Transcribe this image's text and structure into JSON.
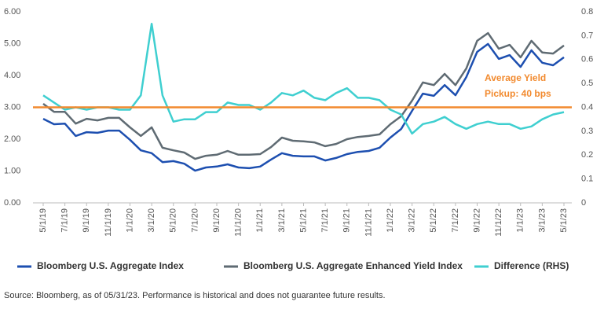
{
  "chart_data": {
    "type": "line",
    "categories": [
      "5/1/19",
      null,
      "7/1/19",
      null,
      "9/1/19",
      null,
      "11/1/19",
      null,
      "1/1/20",
      null,
      "3/1/20",
      null,
      "5/1/20",
      null,
      "7/1/20",
      null,
      "9/1/20",
      null,
      "11/1/20",
      null,
      "1/1/21",
      null,
      "3/1/21",
      null,
      "5/1/21",
      null,
      "7/1/21",
      null,
      "9/1/21",
      null,
      "11/1/21",
      null,
      "1/1/22",
      null,
      "3/1/22",
      null,
      "5/1/22",
      null,
      "7/1/22",
      null,
      "9/1/22",
      null,
      "11/1/22",
      null,
      "1/1/23",
      null,
      "3/1/23",
      null,
      "5/1/23"
    ],
    "series": [
      {
        "name": "Bloomberg U.S. Aggregate Index",
        "color": "#1d4fb0",
        "values": [
          2.64,
          2.47,
          2.49,
          2.1,
          2.22,
          2.2,
          2.27,
          2.27,
          1.98,
          1.65,
          1.56,
          1.28,
          1.31,
          1.23,
          1.01,
          1.11,
          1.14,
          1.21,
          1.11,
          1.09,
          1.14,
          1.36,
          1.56,
          1.48,
          1.46,
          1.46,
          1.33,
          1.41,
          1.53,
          1.6,
          1.63,
          1.73,
          2.05,
          2.32,
          2.89,
          3.43,
          3.36,
          3.7,
          3.38,
          3.95,
          4.74,
          4.99,
          4.52,
          4.64,
          4.27,
          4.79,
          4.4,
          4.32,
          4.57
        ]
      },
      {
        "name": "Bloomberg U.S. Aggregate Enhanced Yield Index",
        "color": "#5f6b73",
        "values": [
          3.11,
          2.86,
          2.86,
          2.49,
          2.64,
          2.59,
          2.67,
          2.67,
          2.37,
          2.1,
          2.37,
          1.73,
          1.65,
          1.58,
          1.38,
          1.48,
          1.51,
          1.63,
          1.51,
          1.51,
          1.53,
          1.75,
          2.05,
          1.95,
          1.93,
          1.9,
          1.78,
          1.85,
          2.0,
          2.07,
          2.1,
          2.15,
          2.47,
          2.72,
          3.21,
          3.78,
          3.7,
          4.05,
          3.7,
          4.22,
          5.09,
          5.33,
          4.84,
          4.96,
          4.57,
          5.09,
          4.72,
          4.69,
          4.94
        ]
      },
      {
        "name": "Difference (RHS)",
        "color": "#3fcfd0",
        "axis": "y2",
        "values": [
          0.45,
          0.42,
          0.39,
          0.4,
          0.39,
          0.4,
          0.4,
          0.39,
          0.39,
          0.45,
          0.75,
          0.45,
          0.34,
          0.35,
          0.35,
          0.38,
          0.38,
          0.42,
          0.41,
          0.41,
          0.39,
          0.42,
          0.46,
          0.45,
          0.47,
          0.44,
          0.43,
          0.46,
          0.48,
          0.44,
          0.44,
          0.43,
          0.39,
          0.37,
          0.29,
          0.33,
          0.34,
          0.36,
          0.33,
          0.31,
          0.33,
          0.34,
          0.33,
          0.33,
          0.31,
          0.32,
          0.35,
          0.37,
          0.38
        ]
      }
    ],
    "reference_line": {
      "value": 0.4,
      "axis": "y2",
      "color": "#f28a2e"
    },
    "annotation": [
      "Average Yield",
      "Pickup: 40 bps"
    ],
    "annotation_color": "#f28a2e",
    "ylim": [
      0,
      6
    ],
    "yticks": [
      {
        "value": 0,
        "label": "0.00"
      },
      {
        "value": 1,
        "label": "1.00"
      },
      {
        "value": 2,
        "label": "2.00"
      },
      {
        "value": 3,
        "label": "3.00"
      },
      {
        "value": 4,
        "label": "4.00"
      },
      {
        "value": 5,
        "label": "5.00"
      },
      {
        "value": 6,
        "label": "6.00"
      }
    ],
    "y2lim": [
      0,
      0.8
    ],
    "y2ticks": [
      0,
      0.1,
      0.2,
      0.3,
      0.4,
      0.5,
      0.6,
      0.7,
      0.8
    ],
    "grid": false,
    "legend": "bottom",
    "source": "Source: Bloomberg, as of 05/31/23. Performance is historical and does not guarantee future results."
  }
}
